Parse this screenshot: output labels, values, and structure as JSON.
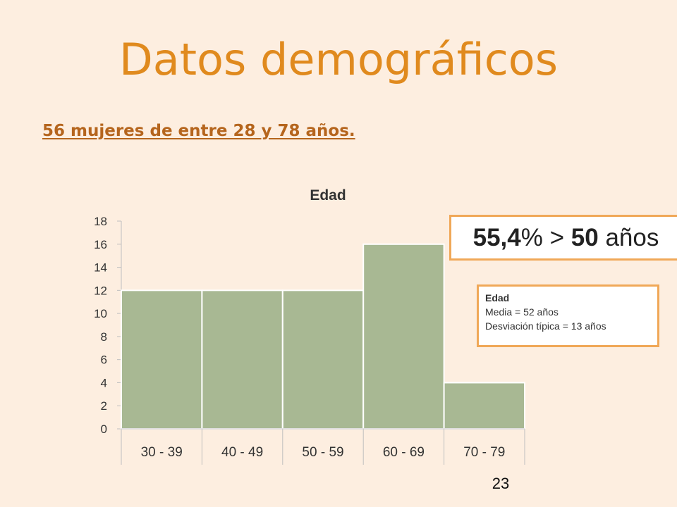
{
  "slide": {
    "title": "Datos demográficos",
    "subtitle": "56 mujeres de entre 28 y 78 años.",
    "page_number": "23"
  },
  "callout": {
    "percent": "55,4",
    "percent_sign": "%",
    "operator": ">",
    "threshold": "50",
    "unit": "años"
  },
  "stats": {
    "heading": "Edad",
    "mean": "Media = 52 años",
    "sd": "Desviación típica = 13 años"
  },
  "colors": {
    "bar_fill": "#a8b893",
    "bar_stroke": "#ffffff",
    "axis": "#bfbfbf",
    "title_accent": "#e08a1e"
  },
  "chart_data": {
    "type": "bar",
    "title": "Edad",
    "categories": [
      "30 - 39",
      "40 - 49",
      "50 - 59",
      "60 - 69",
      "70 - 79"
    ],
    "values": [
      12,
      12,
      12,
      16,
      4
    ],
    "ylim": [
      0,
      18
    ],
    "yticks": [
      0,
      2,
      4,
      6,
      8,
      10,
      12,
      14,
      16,
      18
    ],
    "grid": false,
    "legend": "none"
  }
}
